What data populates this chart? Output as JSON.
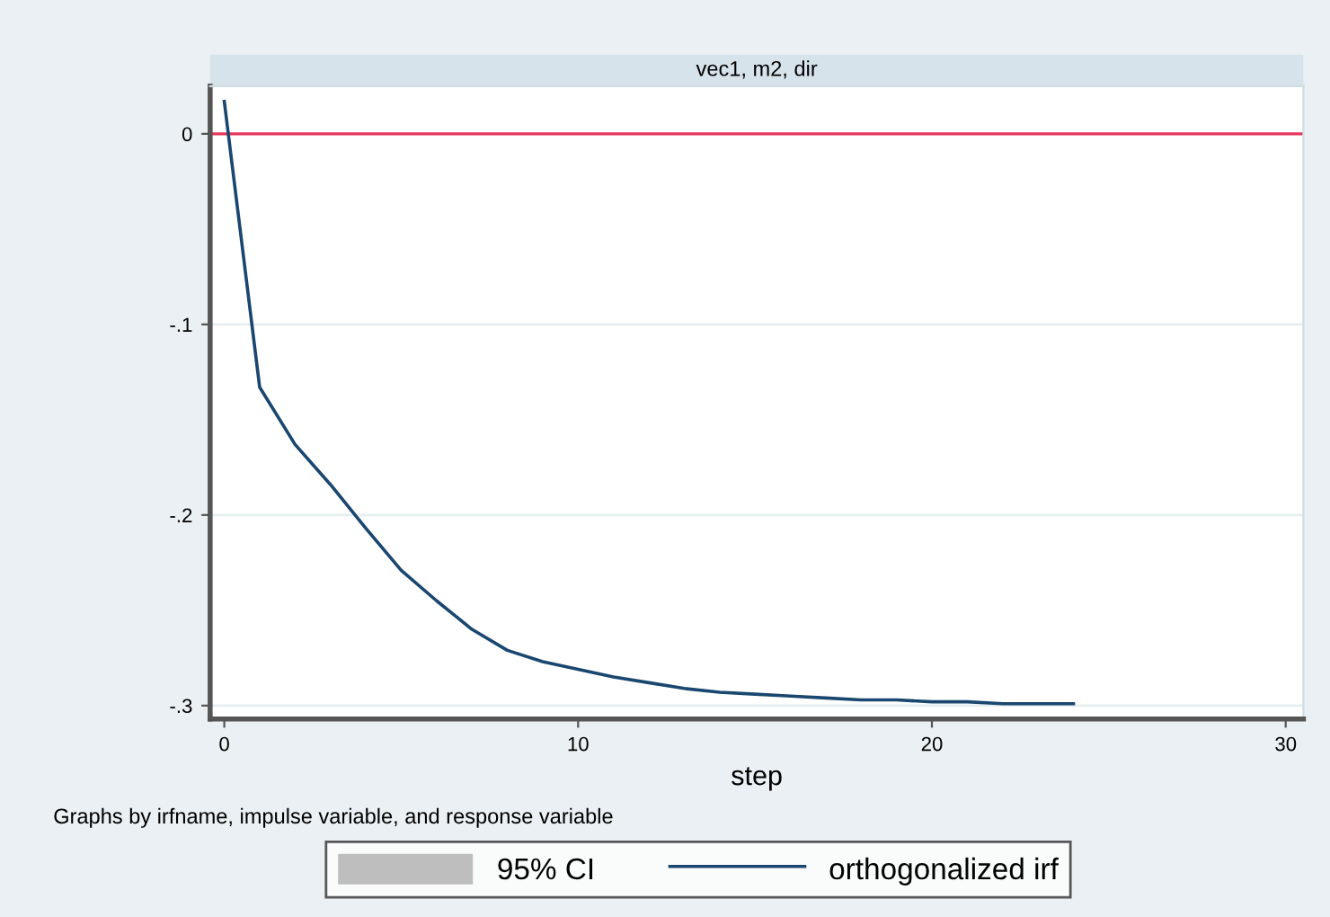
{
  "chart_data": {
    "type": "line",
    "title": "vec1, m2, dir",
    "xlabel": "step",
    "annotations": [
      "Graphs by irfname, impulse variable, and response variable"
    ],
    "x": [
      0,
      1,
      2,
      3,
      4,
      5,
      6,
      7,
      8,
      9,
      10,
      11,
      12,
      13,
      14,
      15,
      16,
      17,
      18,
      19,
      20,
      21,
      22,
      23,
      24
    ],
    "series": [
      {
        "name": "95% CI",
        "type": "area",
        "color": "#bebebe",
        "values": [
          null,
          null,
          null,
          null,
          null,
          null,
          null,
          null,
          null,
          null,
          null,
          null,
          null,
          null,
          null,
          null,
          null,
          null,
          null,
          null,
          null,
          null,
          null,
          null,
          null
        ]
      },
      {
        "name": "orthogonalized irf",
        "color": "#1a476f",
        "values": [
          0.017,
          -0.133,
          -0.163,
          -0.184,
          -0.207,
          -0.229,
          -0.245,
          -0.26,
          -0.271,
          -0.277,
          -0.281,
          -0.285,
          -0.288,
          -0.291,
          -0.293,
          -0.294,
          -0.295,
          -0.296,
          -0.297,
          -0.297,
          -0.298,
          -0.298,
          -0.299,
          -0.299,
          -0.299
        ]
      }
    ],
    "ref_lines": [
      {
        "axis": "y",
        "value": 0,
        "color": "#e8375e"
      }
    ],
    "xlim": [
      -0.4,
      30.5
    ],
    "xticks": [
      0,
      10,
      20,
      30
    ],
    "ylim": [
      -0.307,
      0.025
    ],
    "yticks": [
      {
        "value": 0,
        "label": "0"
      },
      {
        "value": -0.1,
        "label": "-.1"
      },
      {
        "value": -0.2,
        "label": "-.2"
      },
      {
        "value": -0.3,
        "label": "-.3"
      }
    ],
    "grid": "y",
    "legend": "bottom"
  }
}
